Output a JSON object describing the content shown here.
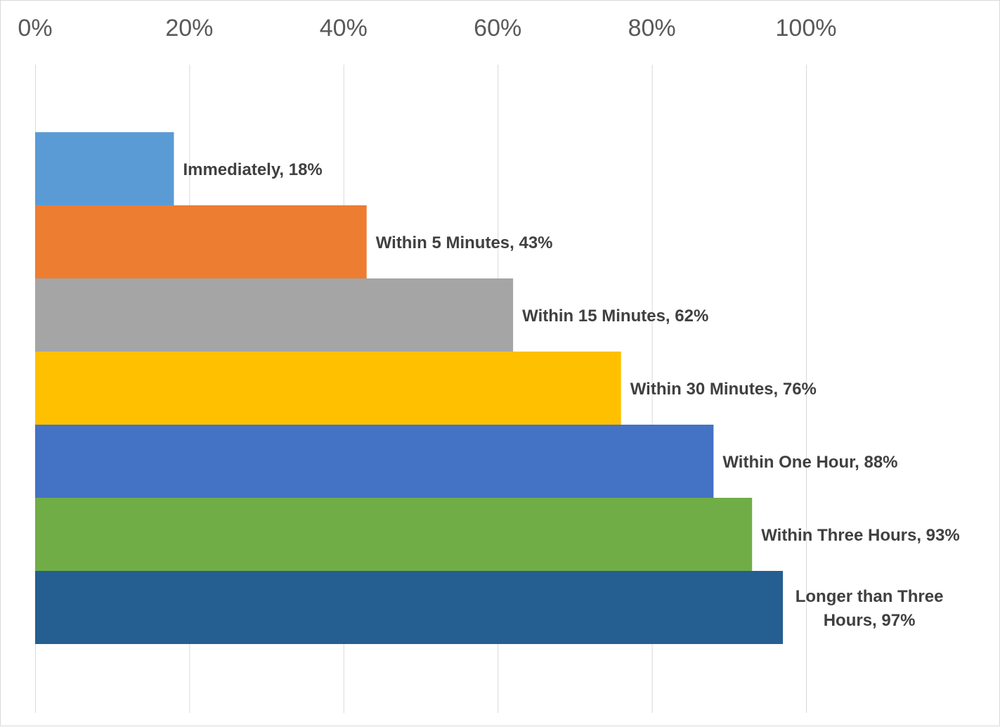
{
  "chart_data": {
    "type": "bar",
    "orientation": "horizontal",
    "title": "",
    "xlabel": "",
    "ylabel": "",
    "xlim": [
      0,
      1.25
    ],
    "x_ticks": [
      0,
      0.2,
      0.4,
      0.6,
      0.8,
      1.0
    ],
    "x_tick_labels": [
      "0%",
      "20%",
      "40%",
      "60%",
      "80%",
      "100%"
    ],
    "x_axis_position": "top",
    "grid": "vertical",
    "legend": "none",
    "categories": [
      "Immediately",
      "Within 5 Minutes",
      "Within 15 Minutes",
      "Within 30 Minutes",
      "Within One Hour",
      "Within Three Hours",
      "Longer than Three Hours"
    ],
    "values": [
      0.18,
      0.43,
      0.62,
      0.76,
      0.88,
      0.93,
      0.97
    ],
    "data_labels": [
      [
        "Immediately, 18%"
      ],
      [
        "Within 5 Minutes, 43%"
      ],
      [
        "Within 15 Minutes, 62%"
      ],
      [
        "Within 30 Minutes, 76%"
      ],
      [
        "Within One Hour, 88%"
      ],
      [
        "Within Three Hours, 93%"
      ],
      [
        "Longer than Three",
        "Hours, 97%"
      ]
    ],
    "colors": [
      "#5b9bd5",
      "#ed7d31",
      "#a5a5a5",
      "#ffc000",
      "#4472c4",
      "#70ad47",
      "#255e91"
    ]
  }
}
